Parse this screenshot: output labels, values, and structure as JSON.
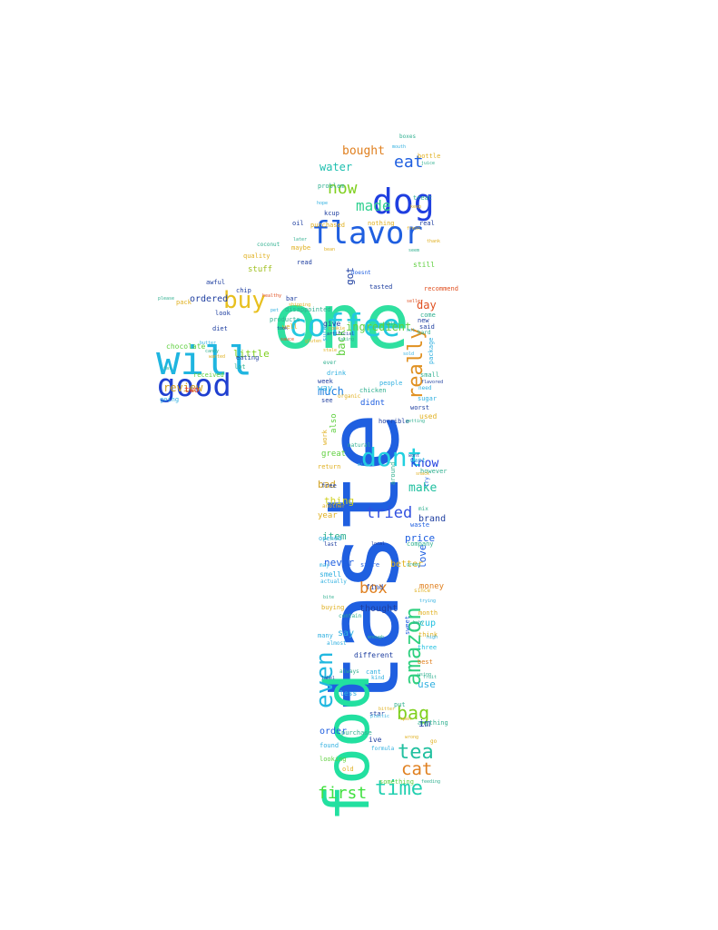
{
  "words": [
    {
      "text": "taste",
      "color": "#1f5fe0"
    },
    {
      "text": "food",
      "color": "#22e0a0"
    },
    {
      "text": "one",
      "color": "#2fe0a0"
    },
    {
      "text": "will",
      "color": "#1fb5e0"
    },
    {
      "text": "dog",
      "color": "#1f3fe0"
    },
    {
      "text": "flavor",
      "color": "#1f5fe0"
    },
    {
      "text": "coffee",
      "color": "#22c8e0"
    },
    {
      "text": "good",
      "color": "#1f3fd0"
    },
    {
      "text": "buy",
      "color": "#e8c020"
    },
    {
      "text": "dont",
      "color": "#22d0e0"
    },
    {
      "text": "even",
      "color": "#22b8e0"
    },
    {
      "text": "amazon",
      "color": "#30d080"
    },
    {
      "text": "really",
      "color": "#e09020"
    },
    {
      "text": "tea",
      "color": "#22c0a0"
    },
    {
      "text": "time",
      "color": "#22d0b0"
    },
    {
      "text": "first",
      "color": "#40e040"
    },
    {
      "text": "bag",
      "color": "#80d020"
    },
    {
      "text": "cat",
      "color": "#e08020"
    },
    {
      "text": "box",
      "color": "#e08020"
    },
    {
      "text": "tried",
      "color": "#3050e0"
    },
    {
      "text": "eat",
      "color": "#1f5fe0"
    },
    {
      "text": "made",
      "color": "#30d090"
    },
    {
      "text": "now",
      "color": "#80d020"
    },
    {
      "text": "bought",
      "color": "#e08020"
    },
    {
      "text": "water",
      "color": "#20c0b0"
    },
    {
      "text": "much",
      "color": "#2080e0"
    },
    {
      "text": "know",
      "color": "#1f3fe0"
    },
    {
      "text": "make",
      "color": "#20c0a0"
    },
    {
      "text": "ingredient",
      "color": "#60d040"
    },
    {
      "text": "review",
      "color": "#d0a020"
    },
    {
      "text": "ordered",
      "color": "#1f3fa0"
    },
    {
      "text": "little",
      "color": "#80d020"
    },
    {
      "text": "day",
      "color": "#e05020"
    },
    {
      "text": "im",
      "color": "#1f3fa0"
    },
    {
      "text": "use",
      "color": "#30b0e0"
    },
    {
      "text": "got",
      "color": "#1f3fa0"
    },
    {
      "text": "stuff",
      "color": "#a0c020"
    },
    {
      "text": "back",
      "color": "#60d040"
    },
    {
      "text": "bad",
      "color": "#d0a020"
    },
    {
      "text": "thing",
      "color": "#d0d020"
    },
    {
      "text": "item",
      "color": "#30b090"
    },
    {
      "text": "price",
      "color": "#1f5fe0"
    },
    {
      "text": "brand",
      "color": "#1f3fa0"
    },
    {
      "text": "never",
      "color": "#1f5fe0"
    },
    {
      "text": "love",
      "color": "#1f5fe0"
    },
    {
      "text": "better",
      "color": "#e0b020"
    },
    {
      "text": "money",
      "color": "#e08020"
    },
    {
      "text": "thought",
      "color": "#1f3fa0"
    },
    {
      "text": "cup",
      "color": "#20c0e0"
    },
    {
      "text": "say",
      "color": "#30b0e0"
    },
    {
      "text": "order",
      "color": "#1f5fe0"
    },
    {
      "text": "two",
      "color": "#e03020"
    },
    {
      "text": "chocolate",
      "color": "#60d040"
    },
    {
      "text": "received",
      "color": "#60d040"
    },
    {
      "text": "purchased",
      "color": "#e0b020"
    },
    {
      "text": "disappointed",
      "color": "#30b090"
    },
    {
      "text": "products",
      "color": "#30b090"
    },
    {
      "text": "give",
      "color": "#1f3fa0"
    },
    {
      "text": "way",
      "color": "#30b0e0"
    },
    {
      "text": "also",
      "color": "#60d040"
    },
    {
      "text": "used",
      "color": "#e0b020"
    },
    {
      "text": "didnt",
      "color": "#1f5fe0"
    },
    {
      "text": "chicken",
      "color": "#30b090"
    },
    {
      "text": "sugar",
      "color": "#30b0e0"
    },
    {
      "text": "still",
      "color": "#60d040"
    },
    {
      "text": "tasted",
      "color": "#1f3fa0"
    },
    {
      "text": "recommend",
      "color": "#e05020"
    },
    {
      "text": "people",
      "color": "#30b0e0"
    },
    {
      "text": "year",
      "color": "#e0b020"
    },
    {
      "text": "opened",
      "color": "#30b0e0"
    },
    {
      "text": "store",
      "color": "#1f5fe0"
    },
    {
      "text": "smell",
      "color": "#30b0e0"
    },
    {
      "text": "company",
      "color": "#30b090"
    },
    {
      "text": "free",
      "color": "#1f3fa0"
    },
    {
      "text": "great",
      "color": "#60d040"
    },
    {
      "text": "return",
      "color": "#e0b020"
    },
    {
      "text": "want",
      "color": "#30b0e0"
    },
    {
      "text": "however",
      "color": "#30b090"
    },
    {
      "text": "waste",
      "color": "#1f5fe0"
    },
    {
      "text": "find",
      "color": "#1f3fa0"
    },
    {
      "text": "three",
      "color": "#20c0e0"
    },
    {
      "text": "best",
      "color": "#e08020"
    },
    {
      "text": "think",
      "color": "#e0b020"
    },
    {
      "text": "month",
      "color": "#e0b020"
    },
    {
      "text": "different",
      "color": "#1f3fa0"
    },
    {
      "text": "less",
      "color": "#30b0e0"
    },
    {
      "text": "star",
      "color": "#1f3fa0"
    },
    {
      "text": "found",
      "color": "#30b0e0"
    },
    {
      "text": "old",
      "color": "#e0b020"
    },
    {
      "text": "looking",
      "color": "#60d040"
    },
    {
      "text": "purchase",
      "color": "#30b090"
    },
    {
      "text": "anything",
      "color": "#30b090"
    },
    {
      "text": "something",
      "color": "#60d040"
    },
    {
      "text": "sweet",
      "color": "#1f5fe0"
    },
    {
      "text": "put",
      "color": "#30b090"
    },
    {
      "text": "worst",
      "color": "#1f3fa0"
    },
    {
      "text": "package",
      "color": "#30b0e0"
    },
    {
      "text": "come",
      "color": "#30b090"
    },
    {
      "text": "said",
      "color": "#1f3fa0"
    },
    {
      "text": "new",
      "color": "#1f3fa0"
    },
    {
      "text": "small",
      "color": "#30b090"
    },
    {
      "text": "real",
      "color": "#1f3fa0"
    },
    {
      "text": "treat",
      "color": "#30b090"
    },
    {
      "text": "oil",
      "color": "#1f3fa0"
    },
    {
      "text": "problem",
      "color": "#30b090"
    },
    {
      "text": "kcup",
      "color": "#1f3fa0"
    },
    {
      "text": "maybe",
      "color": "#e0b020"
    },
    {
      "text": "read",
      "color": "#1f3fa0"
    },
    {
      "text": "coconut",
      "color": "#30b090"
    },
    {
      "text": "quality",
      "color": "#e0b020"
    },
    {
      "text": "chip",
      "color": "#1f3fa0"
    },
    {
      "text": "look",
      "color": "#1f3fa0"
    },
    {
      "text": "diet",
      "color": "#1f3fa0"
    },
    {
      "text": "eating",
      "color": "#1f3fa0"
    },
    {
      "text": "lot",
      "color": "#30b090"
    },
    {
      "text": "going",
      "color": "#30b0e0"
    },
    {
      "text": "pack",
      "color": "#e0b020"
    },
    {
      "text": "awful",
      "color": "#1f3fa0"
    },
    {
      "text": "bar",
      "color": "#1f3fa0"
    },
    {
      "text": "well",
      "color": "#e0b020"
    },
    {
      "text": "doesnt",
      "color": "#1f5fe0"
    },
    {
      "text": "nothing",
      "color": "#e0b020"
    },
    {
      "text": "horrible",
      "color": "#1f3fa0"
    },
    {
      "text": "natural",
      "color": "#30b090"
    },
    {
      "text": "drink",
      "color": "#30b0e0"
    },
    {
      "text": "see",
      "color": "#1f3fa0"
    },
    {
      "text": "week",
      "color": "#1f3fa0"
    },
    {
      "text": "ever",
      "color": "#30b090"
    },
    {
      "text": "work",
      "color": "#e0b020"
    },
    {
      "text": "actually",
      "color": "#30b0e0"
    },
    {
      "text": "buying",
      "color": "#e0b020"
    },
    {
      "text": "many",
      "color": "#30b0e0"
    },
    {
      "text": "contain",
      "color": "#30b090"
    },
    {
      "text": "always",
      "color": "#30b090"
    },
    {
      "text": "cant",
      "color": "#30b0e0"
    },
    {
      "text": "kind",
      "color": "#30b0e0"
    },
    {
      "text": "ive",
      "color": "#1f3fa0"
    },
    {
      "text": "around",
      "color": "#30b090"
    },
    {
      "text": "another",
      "color": "#e0b020"
    },
    {
      "text": "last",
      "color": "#1f3fa0"
    },
    {
      "text": "may",
      "color": "#30b0e0"
    },
    {
      "text": "since",
      "color": "#e0b020"
    },
    {
      "text": "almost",
      "color": "#30b0e0"
    },
    {
      "text": "boxes",
      "color": "#30b090"
    },
    {
      "text": "bottle",
      "color": "#e0b020"
    },
    {
      "text": "sure",
      "color": "#30b0e0"
    },
    {
      "text": "hard",
      "color": "#30b090"
    },
    {
      "text": "need",
      "color": "#30b0e0"
    },
    {
      "text": "try",
      "color": "#1f5fe0"
    },
    {
      "text": "mix",
      "color": "#30b090"
    },
    {
      "text": "artificial",
      "color": "#1f3fa0"
    },
    {
      "text": "seem",
      "color": "#30b090"
    },
    {
      "text": "formula",
      "color": "#30b0e0"
    },
    {
      "text": "feeding",
      "color": "#30b090"
    },
    {
      "text": "using",
      "color": "#30b090"
    },
    {
      "text": "high",
      "color": "#30b0e0"
    },
    {
      "text": "fresh",
      "color": "#e0b020"
    },
    {
      "text": "organic",
      "color": "#e0b020"
    },
    {
      "text": "getting",
      "color": "#30b090"
    },
    {
      "text": "trying",
      "color": "#30b0e0"
    },
    {
      "text": "flavored",
      "color": "#1f3fa0"
    },
    {
      "text": "cookie",
      "color": "#e0b020"
    },
    {
      "text": "local",
      "color": "#1f3fa0"
    },
    {
      "text": "bean",
      "color": "#e0b020"
    },
    {
      "text": "go",
      "color": "#e0b020"
    },
    {
      "text": "thank",
      "color": "#e0b020"
    },
    {
      "text": "healthy",
      "color": "#e05020"
    },
    {
      "text": "butter",
      "color": "#30b0e0"
    },
    {
      "text": "candy",
      "color": "#30b090"
    },
    {
      "text": "wanted",
      "color": "#e0b020"
    },
    {
      "text": "please",
      "color": "#30b090"
    },
    {
      "text": "taking",
      "color": "#30b090"
    },
    {
      "text": "bitter",
      "color": "#e0b020"
    },
    {
      "text": "enough",
      "color": "#30b090"
    },
    {
      "text": "milk",
      "color": "#30b0e0"
    },
    {
      "text": "salt",
      "color": "#30b090"
    },
    {
      "text": "shipping",
      "color": "#e0b020"
    },
    {
      "text": "took",
      "color": "#1f3fa0"
    },
    {
      "text": "pet",
      "color": "#30b0e0"
    },
    {
      "text": "later",
      "color": "#30b090"
    },
    {
      "text": "gluten",
      "color": "#e0b020"
    },
    {
      "text": "hot",
      "color": "#30b0e0"
    },
    {
      "text": "juice",
      "color": "#30b090"
    },
    {
      "text": "stale",
      "color": "#e0b020"
    },
    {
      "text": "seller",
      "color": "#e05020"
    },
    {
      "text": "label",
      "color": "#1f3fa0"
    },
    {
      "text": "plastic",
      "color": "#30b0e0"
    },
    {
      "text": "bite",
      "color": "#30b090"
    },
    {
      "text": "open",
      "color": "#e0b020"
    },
    {
      "text": "fruit",
      "color": "#30b090"
    },
    {
      "text": "snack",
      "color": "#e0b020"
    },
    {
      "text": "mouth",
      "color": "#30b0e0"
    },
    {
      "text": "sauce",
      "color": "#e05020"
    },
    {
      "text": "fat",
      "color": "#30b090"
    },
    {
      "text": "hope",
      "color": "#30b0e0"
    },
    {
      "text": "keep",
      "color": "#e0b020"
    },
    {
      "text": "baby",
      "color": "#30b090"
    },
    {
      "text": "green",
      "color": "#30b090"
    },
    {
      "text": "wont",
      "color": "#1f3fa0"
    },
    {
      "text": "sold",
      "color": "#30b0e0"
    },
    {
      "text": "wrong",
      "color": "#e0b020"
    },
    {
      "text": "size",
      "color": "#30b090"
    },
    {
      "text": "loves",
      "color": "#30b0e0"
    },
    {
      "text": "cereal",
      "color": "#30b090"
    }
  ]
}
